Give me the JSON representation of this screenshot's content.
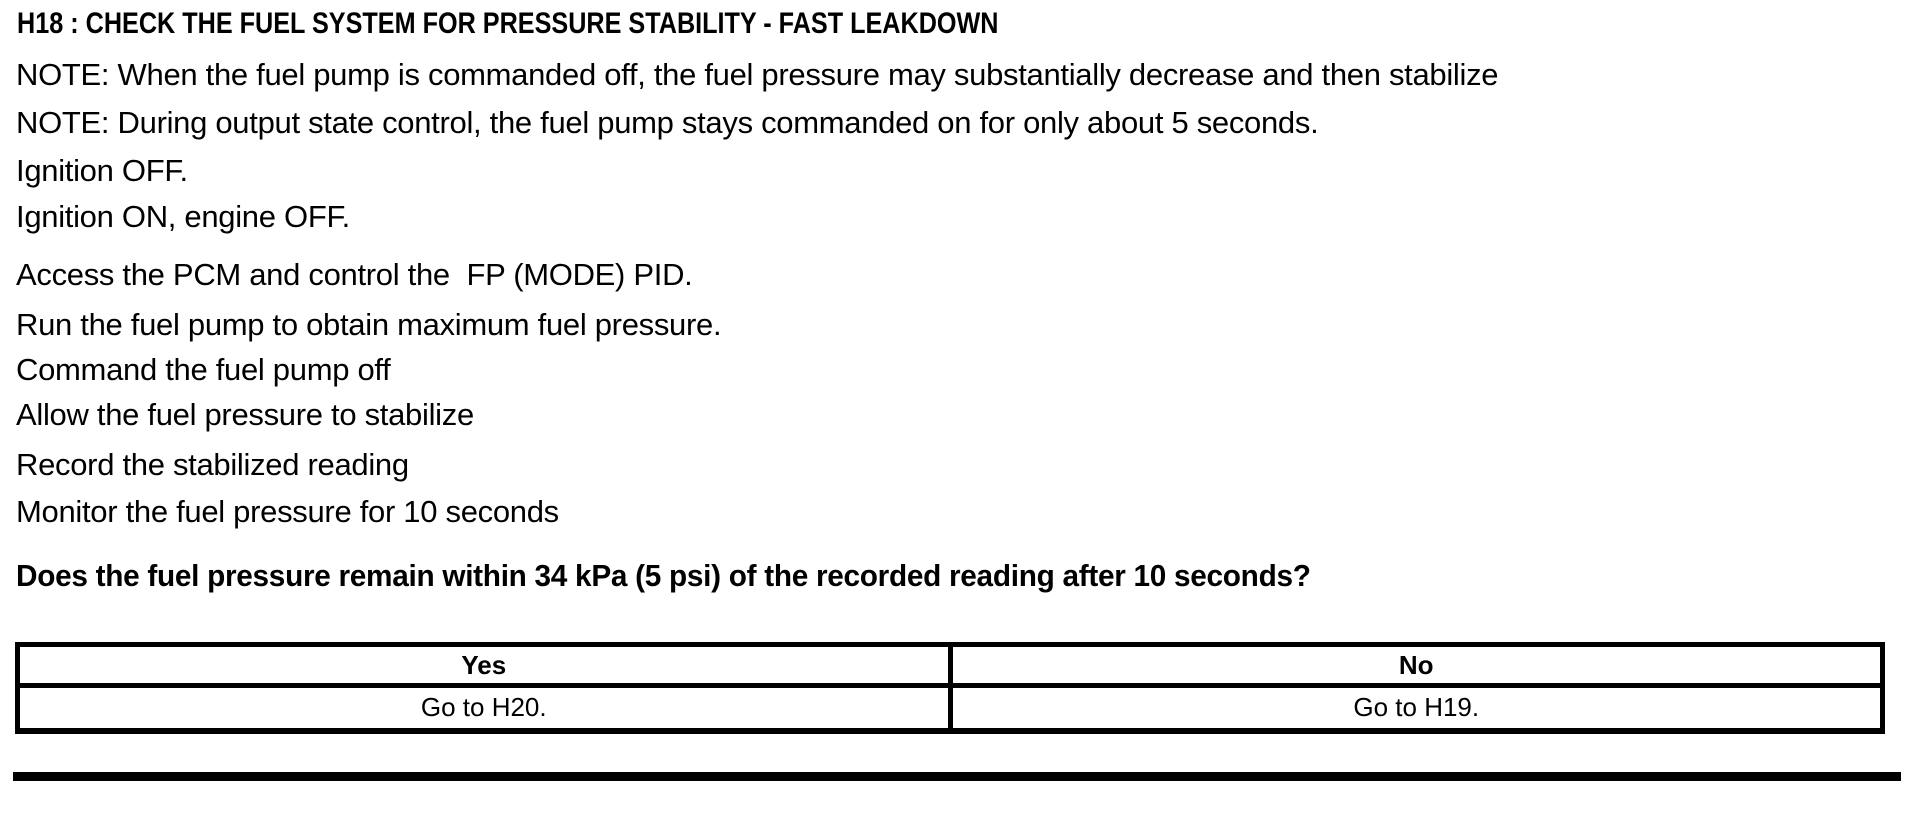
{
  "page": {
    "title": "H18 : CHECK THE FUEL SYSTEM FOR PRESSURE STABILITY - FAST LEAKDOWN",
    "lines": {
      "note1": "NOTE: When the fuel pump is commanded off, the fuel pressure may substantially decrease and then stabilize",
      "note2": "NOTE: During output state control, the fuel pump stays commanded on for only about 5 seconds.",
      "ignition_off": "Ignition OFF.",
      "ignition_on": "Ignition ON, engine OFF.",
      "access_pcm": "Access the PCM and control the  FP (MODE) PID.",
      "run_pump": "Run the fuel pump to obtain maximum fuel pressure.",
      "command_off": "Command the fuel pump off",
      "allow_stabilize": "Allow the fuel pressure to stabilize",
      "record_reading": "Record the stabilized reading",
      "monitor_pressure": "Monitor the fuel pressure for 10 seconds"
    },
    "question": "Does the fuel pressure remain within 34 kPa (5 psi) of the recorded reading after 10 seconds?"
  },
  "results_table": {
    "headers": [
      "Yes",
      "No"
    ],
    "rows": [
      [
        "Go to H20.",
        "Go to H19."
      ]
    ]
  },
  "colors": {
    "text": "#000000",
    "background": "#ffffff",
    "table_border": "#000000"
  }
}
